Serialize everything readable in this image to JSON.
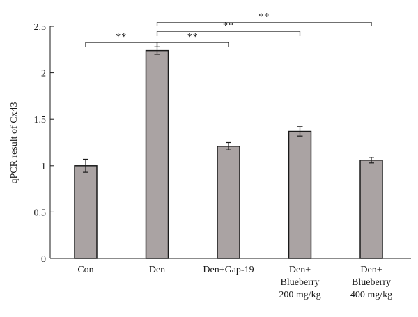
{
  "chart_data": {
    "type": "bar",
    "title": "",
    "xlabel": "",
    "ylabel": "qPCR result of Cx43",
    "ylim": [
      0,
      2.5
    ],
    "yticks": [
      "0",
      "0.5",
      "1",
      "1.5",
      "2",
      "2.5"
    ],
    "grid": false,
    "categories": [
      [
        "Con"
      ],
      [
        "Den"
      ],
      [
        "Den+Gap-19"
      ],
      [
        "Den+",
        "Blueberry",
        "200 mg/kg"
      ],
      [
        "Den+",
        "Blueberry",
        "400 mg/kg"
      ]
    ],
    "values": [
      1.0,
      2.24,
      1.21,
      1.37,
      1.06
    ],
    "errors": [
      0.07,
      0.04,
      0.04,
      0.05,
      0.03
    ],
    "bar_color": "#aaa3a3",
    "bar_edge_color": "#1a1a1a",
    "significance": [
      {
        "from": 0,
        "to": 1,
        "label": "**"
      },
      {
        "from": 1,
        "to": 2,
        "label": "**"
      },
      {
        "from": 1,
        "to": 3,
        "label": "**"
      },
      {
        "from": 1,
        "to": 4,
        "label": "**"
      }
    ]
  }
}
